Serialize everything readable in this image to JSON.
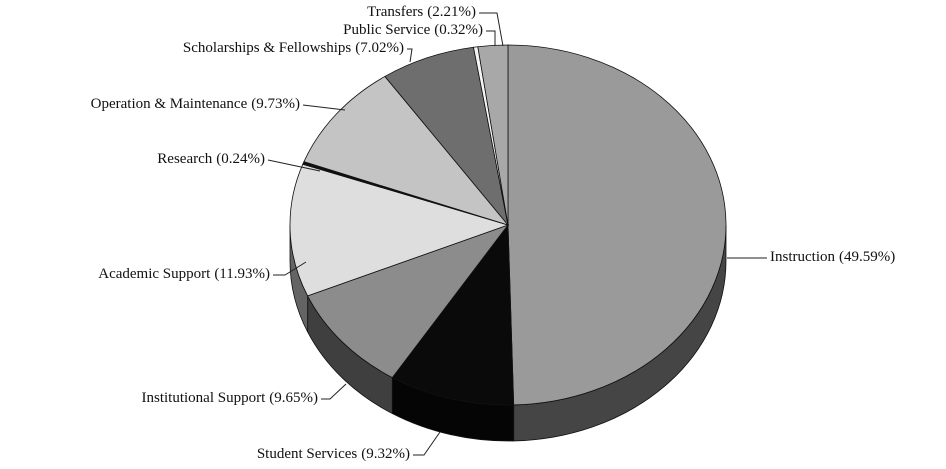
{
  "chart_data": {
    "type": "pie",
    "categories": [
      "Instruction",
      "Student Services",
      "Institutional Support",
      "Academic Support",
      "Research",
      "Operation & Maintenance",
      "Scholarships & Fellowships",
      "Public Service",
      "Transfers"
    ],
    "values": [
      49.59,
      9.32,
      9.65,
      11.93,
      0.24,
      9.73,
      7.02,
      0.32,
      2.21
    ],
    "value_labels": [
      "(49.59%)",
      "(9.32%)",
      "(9.65%)",
      "(11.93%)",
      "(0.24%)",
      "(9.73%)",
      "(7.02%)",
      "(0.32%)",
      "(2.21%)"
    ],
    "colors": [
      "#9a9a9a",
      "#0a0a0a",
      "#8c8c8c",
      "#dedede",
      "#111111",
      "#c4c4c4",
      "#6e6e6e",
      "#f4f4f4",
      "#a8a8a8"
    ]
  }
}
